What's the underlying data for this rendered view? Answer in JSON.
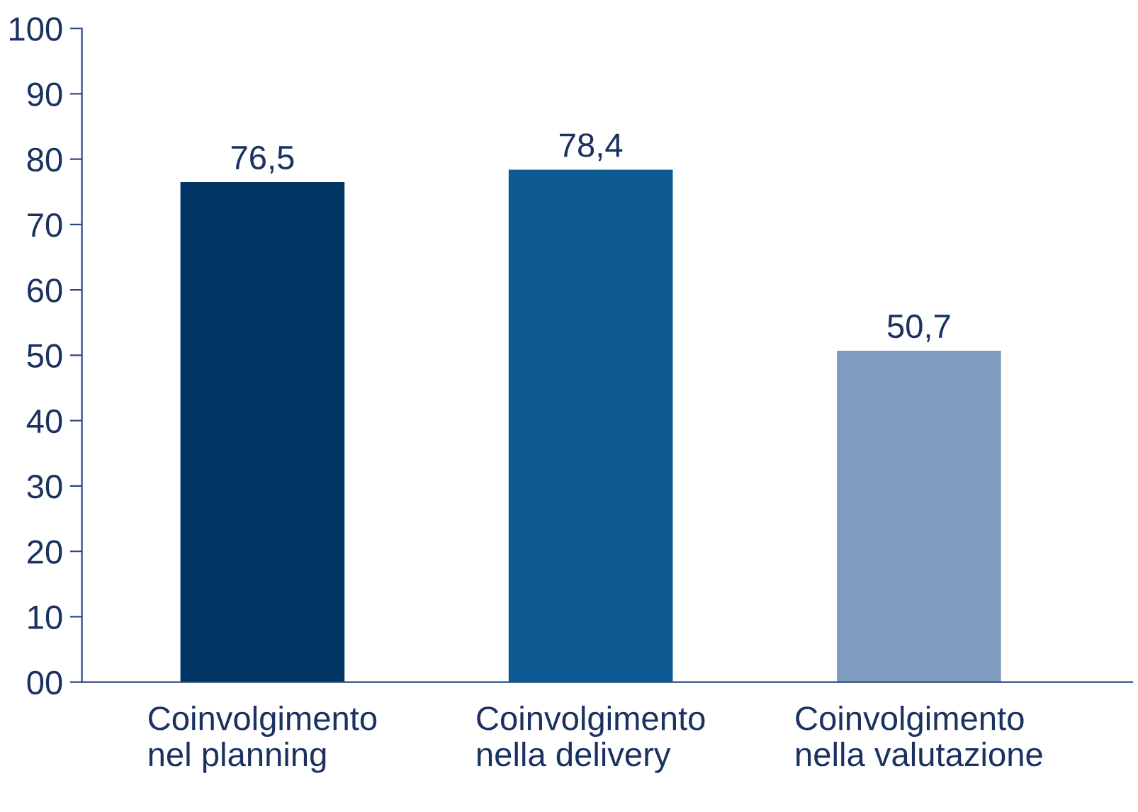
{
  "chart_data": {
    "type": "bar",
    "categories": [
      "Coinvolgimento\nnel planning",
      "Coinvolgimento\nnella delivery",
      "Coinvolgimento\nnella valutazione"
    ],
    "values": [
      76.5,
      78.4,
      50.7
    ],
    "colors": [
      "#023564",
      "#0d5a93",
      "#7f9bbe"
    ],
    "value_labels": [
      "76,5",
      "78,4",
      "50,7"
    ],
    "ylim": [
      0,
      100
    ],
    "yticks": [
      {
        "value": 0,
        "label": "00"
      },
      10,
      20,
      30,
      40,
      50,
      60,
      70,
      80,
      90,
      100
    ],
    "grid": false,
    "legend": false
  }
}
